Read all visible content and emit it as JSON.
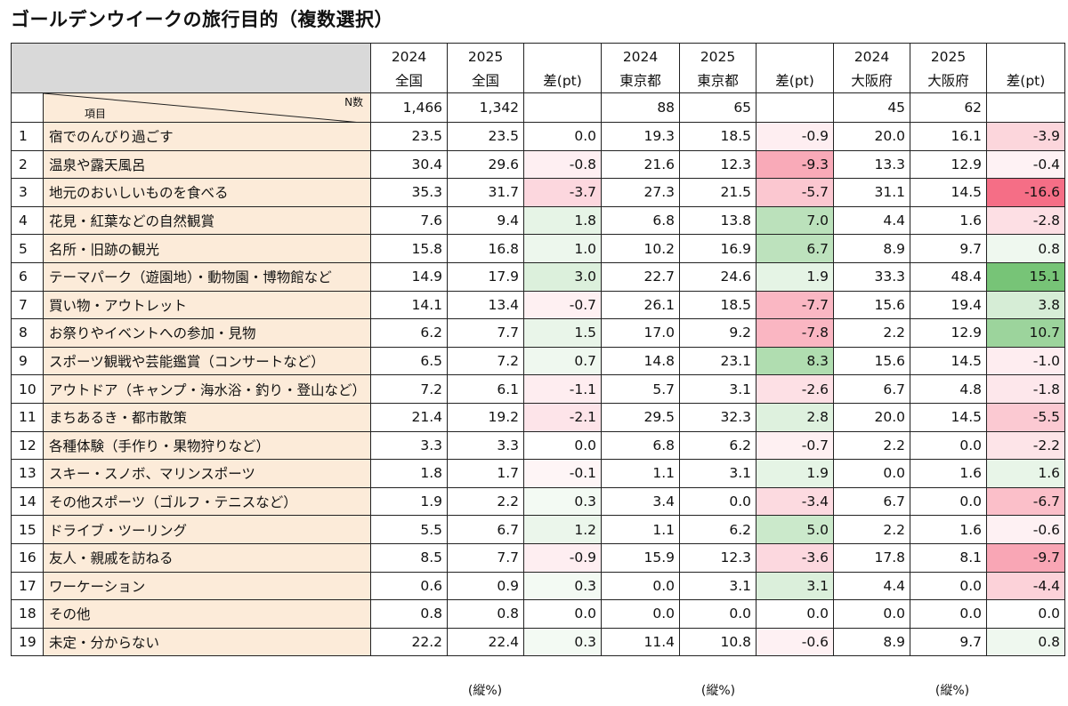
{
  "title": "ゴールデンウイークの旅行目的（複数選択）",
  "header": {
    "years": [
      "2024",
      "2025",
      "",
      "2024",
      "2025",
      "",
      "2024",
      "2025",
      ""
    ],
    "regions": [
      "全国",
      "全国",
      "差(pt)",
      "東京都",
      "東京都",
      "差(pt)",
      "大阪府",
      "大阪府",
      "差(pt)"
    ],
    "item_label": "項目",
    "n_label": "N数",
    "n_values": [
      "1,466",
      "1,342",
      "",
      "88",
      "65",
      "",
      "45",
      "62",
      ""
    ]
  },
  "footer": [
    "(縦%)",
    "(縦%)",
    "(縦%)"
  ],
  "colors": {
    "label_bg": "#fcebd9",
    "header_bg": "#d9d9d9",
    "positive": "#5cb85c",
    "negative": "#f4607a"
  },
  "chart_data": {
    "type": "table",
    "title": "ゴールデンウイークの旅行目的（複数選択）",
    "columns": [
      "2024 全国",
      "2025 全国",
      "差(pt)",
      "2024 東京都",
      "2025 東京都",
      "差(pt)",
      "2024 大阪府",
      "2025 大阪府",
      "差(pt)"
    ],
    "rows": [
      {
        "no": "1",
        "item": "宿でのんびり過ごす",
        "values": [
          "23.5",
          "23.5",
          "0.0",
          "19.3",
          "18.5",
          "-0.9",
          "20.0",
          "16.1",
          "-3.9"
        ]
      },
      {
        "no": "2",
        "item": "温泉や露天風呂",
        "values": [
          "30.4",
          "29.6",
          "-0.8",
          "21.6",
          "12.3",
          "-9.3",
          "13.3",
          "12.9",
          "-0.4"
        ]
      },
      {
        "no": "3",
        "item": "地元のおいしいものを食べる",
        "values": [
          "35.3",
          "31.7",
          "-3.7",
          "27.3",
          "21.5",
          "-5.7",
          "31.1",
          "14.5",
          "-16.6"
        ]
      },
      {
        "no": "4",
        "item": "花見・紅葉などの自然観賞",
        "values": [
          "7.6",
          "9.4",
          "1.8",
          "6.8",
          "13.8",
          "7.0",
          "4.4",
          "1.6",
          "-2.8"
        ]
      },
      {
        "no": "5",
        "item": "名所・旧跡の観光",
        "values": [
          "15.8",
          "16.8",
          "1.0",
          "10.2",
          "16.9",
          "6.7",
          "8.9",
          "9.7",
          "0.8"
        ]
      },
      {
        "no": "6",
        "item": "テーマパーク（遊園地）・動物園・博物館など",
        "values": [
          "14.9",
          "17.9",
          "3.0",
          "22.7",
          "24.6",
          "1.9",
          "33.3",
          "48.4",
          "15.1"
        ]
      },
      {
        "no": "7",
        "item": "買い物・アウトレット",
        "values": [
          "14.1",
          "13.4",
          "-0.7",
          "26.1",
          "18.5",
          "-7.7",
          "15.6",
          "19.4",
          "3.8"
        ]
      },
      {
        "no": "8",
        "item": "お祭りやイベントへの参加・見物",
        "values": [
          "6.2",
          "7.7",
          "1.5",
          "17.0",
          "9.2",
          "-7.8",
          "2.2",
          "12.9",
          "10.7"
        ]
      },
      {
        "no": "9",
        "item": "スポーツ観戦や芸能鑑賞（コンサートなど）",
        "values": [
          "6.5",
          "7.2",
          "0.7",
          "14.8",
          "23.1",
          "8.3",
          "15.6",
          "14.5",
          "-1.0"
        ]
      },
      {
        "no": "10",
        "item": "アウトドア（キャンプ・海水浴・釣り・登山など）",
        "values": [
          "7.2",
          "6.1",
          "-1.1",
          "5.7",
          "3.1",
          "-2.6",
          "6.7",
          "4.8",
          "-1.8"
        ]
      },
      {
        "no": "11",
        "item": "まちあるき・都市散策",
        "values": [
          "21.4",
          "19.2",
          "-2.1",
          "29.5",
          "32.3",
          "2.8",
          "20.0",
          "14.5",
          "-5.5"
        ]
      },
      {
        "no": "12",
        "item": "各種体験（手作り・果物狩りなど）",
        "values": [
          "3.3",
          "3.3",
          "0.0",
          "6.8",
          "6.2",
          "-0.7",
          "2.2",
          "0.0",
          "-2.2"
        ]
      },
      {
        "no": "13",
        "item": "スキー・スノボ、マリンスポーツ",
        "values": [
          "1.8",
          "1.7",
          "-0.1",
          "1.1",
          "3.1",
          "1.9",
          "0.0",
          "1.6",
          "1.6"
        ]
      },
      {
        "no": "14",
        "item": "その他スポーツ（ゴルフ・テニスなど）",
        "values": [
          "1.9",
          "2.2",
          "0.3",
          "3.4",
          "0.0",
          "-3.4",
          "6.7",
          "0.0",
          "-6.7"
        ]
      },
      {
        "no": "15",
        "item": "ドライブ・ツーリング",
        "values": [
          "5.5",
          "6.7",
          "1.2",
          "1.1",
          "6.2",
          "5.0",
          "2.2",
          "1.6",
          "-0.6"
        ]
      },
      {
        "no": "16",
        "item": "友人・親戚を訪ねる",
        "values": [
          "8.5",
          "7.7",
          "-0.9",
          "15.9",
          "12.3",
          "-3.6",
          "17.8",
          "8.1",
          "-9.7"
        ]
      },
      {
        "no": "17",
        "item": "ワーケーション",
        "values": [
          "0.6",
          "0.9",
          "0.3",
          "0.0",
          "3.1",
          "3.1",
          "4.4",
          "0.0",
          "-4.4"
        ]
      },
      {
        "no": "18",
        "item": "その他",
        "values": [
          "0.8",
          "0.8",
          "0.0",
          "0.0",
          "0.0",
          "0.0",
          "0.0",
          "0.0",
          "0.0"
        ]
      },
      {
        "no": "19",
        "item": "未定・分からない",
        "values": [
          "22.2",
          "22.4",
          "0.3",
          "11.4",
          "10.8",
          "-0.6",
          "8.9",
          "9.7",
          "0.8"
        ]
      }
    ]
  }
}
